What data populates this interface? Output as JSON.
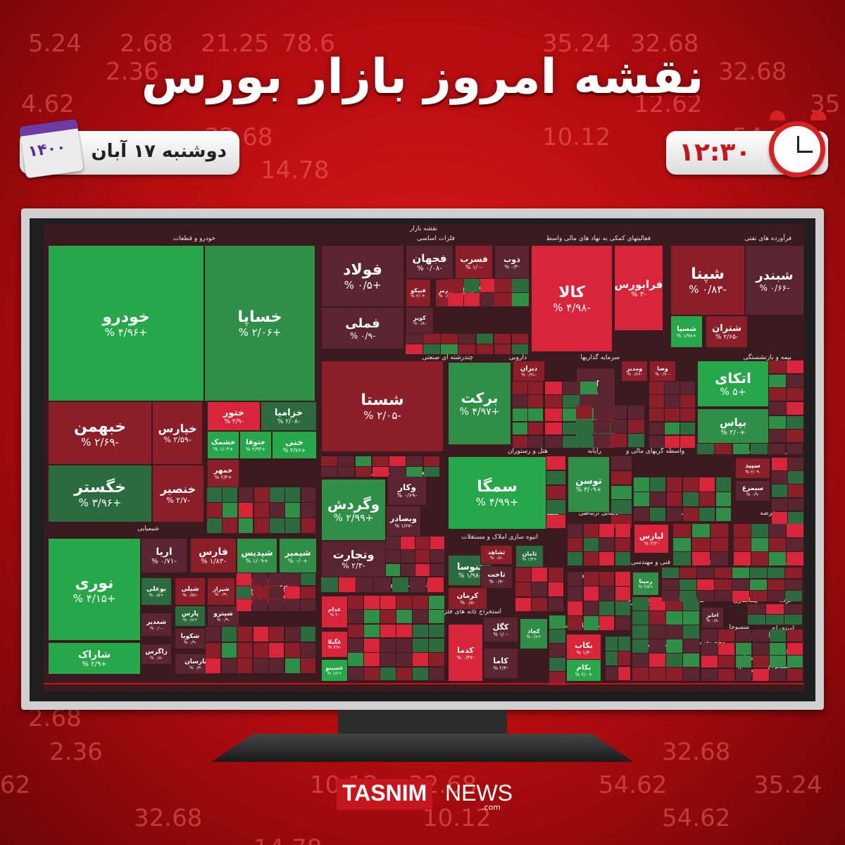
{
  "title": "نقشه امروز بازار بورس",
  "date": {
    "label": "دوشنبه ۱۷ آبان",
    "year": "۱۴۰۰"
  },
  "time": "۱۲:۳۰",
  "logo": {
    "part1": "TASNIM",
    "part2": "NEWS",
    "domain": ".com"
  },
  "background_numbers": [
    "5.24",
    "2.68",
    "21.25",
    "78.6",
    "35.24",
    "32.68",
    "2.36",
    "32.68",
    "4.62",
    "12.62",
    "35",
    "32.68",
    "10.12",
    "54.62",
    "14.78",
    "2.68",
    "2.36",
    "32.68",
    "62",
    "10.12",
    "32.68",
    "54.62",
    "35.24",
    "32.68",
    "10.12",
    "54.62",
    "14.78"
  ],
  "treemap": {
    "header": "نقشه بازار",
    "colors": {
      "strong_green": "#26a84a",
      "green": "#2f8f47",
      "dark_green": "#2c6b3e",
      "red": "#d9253a",
      "dark_red": "#8a1f2a",
      "maroon": "#5a2430"
    },
    "sections": [
      {
        "label": "خودرو و قطعات"
      },
      {
        "label": "فلزات اساسی"
      },
      {
        "label": "فعالیتهای کمکی به نهاد های مالی واسط"
      },
      {
        "label": "فرآورده های نفتی"
      },
      {
        "label": "چندرشته ای صنعتی"
      },
      {
        "label": "دارویی"
      },
      {
        "label": "سرمایه گذاریها"
      },
      {
        "label": "بیمه و بازنشستگی"
      },
      {
        "label": "بانکها و موسسات اعتباری"
      },
      {
        "label": "هتل و رستوران"
      },
      {
        "label": "رایانه"
      },
      {
        "label": "واسطه گریهای مالی و"
      },
      {
        "label": "زراعت و خدمات"
      },
      {
        "label": "شیمیایی"
      },
      {
        "label": "انبوه سازی املاک و مستغلات"
      },
      {
        "label": "سیمان آهک گچ"
      },
      {
        "label": "وسایل ارتباطی"
      },
      {
        "label": "کانی غیر فلزی"
      },
      {
        "label": "عرضه"
      },
      {
        "label": "غذایی بجز قند وشکر"
      },
      {
        "label": "استخراج کانه های فلزی"
      },
      {
        "label": "حمل و نقل"
      },
      {
        "label": "فنی و مهندسی"
      },
      {
        "label": "اطلاعات و"
      },
      {
        "label": "کاشی و"
      },
      {
        "label": "لاستیک و"
      },
      {
        "label": "قند و شکر"
      },
      {
        "label": "محصولات"
      },
      {
        "label": "مخابرات"
      },
      {
        "label": "پیمانکاری"
      },
      {
        "label": "خرده"
      },
      {
        "label": "دستگاههای برقی"
      },
      {
        "label": "ماشین آلات و"
      },
      {
        "label": "محصولات"
      },
      {
        "label": "منسوجا"
      },
      {
        "label": "استخراج"
      },
      {
        "label": "استخراج"
      },
      {
        "label": "فعالیت"
      },
      {
        "label": "محصولا"
      },
      {
        "label": "استخراج"
      },
      {
        "label": "محصولا"
      }
    ],
    "tiles": [
      {
        "name": "خودرو",
        "value": "+۴/۹۶ %",
        "color": "strong_green"
      },
      {
        "name": "خساپا",
        "value": "+۲/۰۶ %",
        "color": "green"
      },
      {
        "name": "خبهمن",
        "value": "-۲/۶۹ %",
        "color": "dark_red"
      },
      {
        "name": "خپارس",
        "value": "-۲/۵۹ %",
        "color": "dark_red"
      },
      {
        "name": "ختور",
        "value": "-۲/۹ %",
        "color": "red"
      },
      {
        "name": "خزامیا",
        "value": "-۲/۰۸ %",
        "color": "dark_green"
      },
      {
        "name": "خگستر",
        "value": "+۳/۹۶ %",
        "color": "dark_green"
      },
      {
        "name": "خشمک",
        "value": "+۱/۰۳ %",
        "color": "strong_green"
      },
      {
        "name": "ختوقا",
        "value": "+۲/۹۴ %",
        "color": "strong_green"
      },
      {
        "name": "خنی",
        "value": "+۳/۷۶ %",
        "color": "strong_green"
      },
      {
        "name": "خمهر",
        "value": "+۲/۳ %",
        "color": "dark_red"
      },
      {
        "name": "خنصیر",
        "value": "-۲/۷ %",
        "color": "dark_red"
      },
      {
        "name": "فولاد",
        "value": "+۰/۵ %",
        "color": "maroon"
      },
      {
        "name": "فملی",
        "value": "-۰/۹ %",
        "color": "maroon"
      },
      {
        "name": "فجهان",
        "value": "-۰/۰۸ %",
        "color": "maroon"
      },
      {
        "name": "فسرب",
        "value": "-۱/۰ %",
        "color": "dark_red"
      },
      {
        "name": "فسبزوار",
        "value": "-۰/۱ %",
        "color": "maroon"
      },
      {
        "name": "ذوب",
        "value": "-۰/۴ %",
        "color": "maroon"
      },
      {
        "name": "فبیکو",
        "value": "-۲/۰۳ %",
        "color": "dark_red"
      },
      {
        "name": "هرمز",
        "value": "-۰/۹ %",
        "color": "dark_red"
      },
      {
        "name": "کویر",
        "value": "-۰/۸ %",
        "color": "maroon"
      },
      {
        "name": "کالا",
        "value": "-۴/۹۸ %",
        "color": "red"
      },
      {
        "name": "فرابورس",
        "value": "-۳ %",
        "color": "red"
      },
      {
        "name": "شپنا",
        "value": "-۰/۸۳ %",
        "color": "dark_red"
      },
      {
        "name": "شبندر",
        "value": "-۰/۶۶ %",
        "color": "maroon"
      },
      {
        "name": "شسپا",
        "value": "+۱/۹۸ %",
        "color": "strong_green"
      },
      {
        "name": "شتران",
        "value": "-۲/۶۵ %",
        "color": "dark_red"
      },
      {
        "name": "شستا",
        "value": "-۲/۰۵ %",
        "color": "dark_red"
      },
      {
        "name": "برکت",
        "value": "+۴/۹۷ %",
        "color": "green"
      },
      {
        "name": "دیران",
        "value": "-۰/۹۱ %",
        "color": "dark_red"
      },
      {
        "name": "ومدیر",
        "value": "-۰/۸۶ %",
        "color": "dark_red"
      },
      {
        "name": "وصا",
        "value": "-۰/۷۰ %",
        "color": "dark_red"
      },
      {
        "name": "وخارزم",
        "value": "-۲/۷ %",
        "color": "maroon"
      },
      {
        "name": "اتکای",
        "value": "+۵ %",
        "color": "strong_green"
      },
      {
        "name": "بپاس",
        "value": "+۲/۰ %",
        "color": "green"
      },
      {
        "name": "وکار",
        "value": "-۰/۶۹ %",
        "color": "maroon"
      },
      {
        "name": "وگردش",
        "value": "+۲/۹۹ %",
        "color": "green"
      },
      {
        "name": "وبصادر",
        "value": "-۱/۶۷ %",
        "color": "maroon"
      },
      {
        "name": "وتجارت",
        "value": "-۲/۳ %",
        "color": "maroon"
      },
      {
        "name": "سمگا",
        "value": "+۴/۹۹ %",
        "color": "strong_green"
      },
      {
        "name": "توسن",
        "value": "+۳/۰۹ %",
        "color": "green"
      },
      {
        "name": "سپید",
        "value": "-۲/۰۹ %",
        "color": "dark_red"
      },
      {
        "name": "سیمرغ",
        "value": "-۰/۹ %",
        "color": "maroon"
      },
      {
        "name": "نوری",
        "value": "+۴/۱۵ %",
        "color": "strong_green"
      },
      {
        "name": "شاراک",
        "value": "+۲/۹ %",
        "color": "strong_green"
      },
      {
        "name": "اریا",
        "value": "-۰/۷۱ %",
        "color": "maroon"
      },
      {
        "name": "فارس",
        "value": "-۱/۸۳ %",
        "color": "dark_red"
      },
      {
        "name": "شپدیس",
        "value": "+۱/۰۹ %",
        "color": "green"
      },
      {
        "name": "شیمیر",
        "value": "+۰/۰ %",
        "color": "green"
      },
      {
        "name": "بوعلی",
        "value": "+۰/۵ %",
        "color": "dark_green"
      },
      {
        "name": "شیلی",
        "value": "-۰/۵۶ %",
        "color": "dark_red"
      },
      {
        "name": "شیراز",
        "value": "-۰/۹ %",
        "color": "dark_red"
      },
      {
        "name": "تاپیکو",
        "value": "-۰/۵ %",
        "color": "dark_red"
      },
      {
        "name": "کلر",
        "value": "-۰/۷۹ %",
        "color": "dark_red"
      },
      {
        "name": "پارس",
        "value": "+۰/۸ %",
        "color": "dark_green"
      },
      {
        "name": "شپترو",
        "value": "-۰/۹ %",
        "color": "maroon"
      },
      {
        "name": "شغدیر",
        "value": "-۰/۰ %",
        "color": "maroon"
      },
      {
        "name": "شکویا",
        "value": "-۰/۹ %",
        "color": "maroon"
      },
      {
        "name": "زاگرس",
        "value": "-۰/۸ %",
        "color": "maroon"
      },
      {
        "name": "پارسان",
        "value": "-۰/۳ %",
        "color": "maroon"
      },
      {
        "name": "ثنوسا",
        "value": "-۱/۹۸ %",
        "color": "dark_green"
      },
      {
        "name": "ثشاهد",
        "value": "-۰/۸ %",
        "color": "dark_red"
      },
      {
        "name": "ثامان",
        "value": "+۱/۳ %",
        "color": "dark_green"
      },
      {
        "name": "ثاخت",
        "value": "-۰/۷ %",
        "color": "maroon"
      },
      {
        "name": "کرمان",
        "value": "-۰/۸ %",
        "color": "dark_red"
      },
      {
        "name": "لپارس",
        "value": "-۳/۲ %",
        "color": "red"
      },
      {
        "name": "رمپنا",
        "value": "+۲/۵ %",
        "color": "green"
      },
      {
        "name": "اخابر",
        "value": "-۰/۸ %",
        "color": "maroon"
      },
      {
        "name": "غدام",
        "value": "-۳ %",
        "color": "red"
      },
      {
        "name": "غگیلا",
        "value": "-۳/۷ %",
        "color": "red"
      },
      {
        "name": "غسینو",
        "value": "+۱/۷ %",
        "color": "strong_green"
      },
      {
        "name": "کگل",
        "value": "-۱/۰ %",
        "color": "maroon"
      },
      {
        "name": "کچاد",
        "value": "+۰/۸ %",
        "color": "green"
      },
      {
        "name": "کدما",
        "value": "-۰/۳۷ %",
        "color": "red"
      },
      {
        "name": "کاما",
        "value": "-۲/۳ %",
        "color": "maroon"
      },
      {
        "name": "بکاب",
        "value": "-۱/۴ %",
        "color": "red"
      },
      {
        "name": "بکام",
        "value": "+۲/۰ %",
        "color": "strong_green"
      }
    ]
  }
}
